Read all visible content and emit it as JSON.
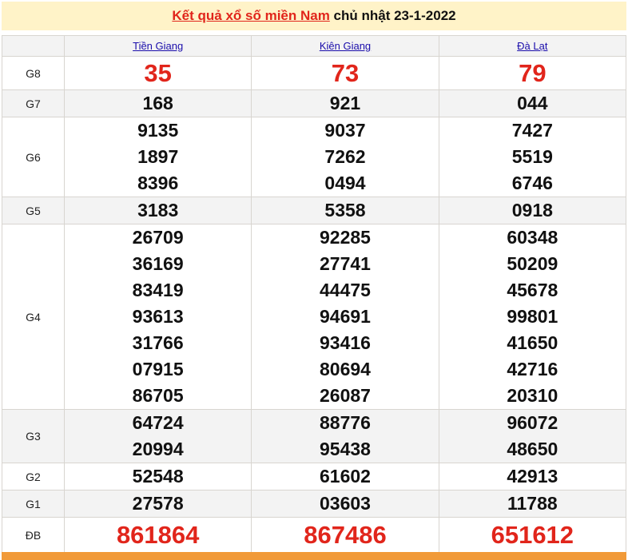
{
  "title": {
    "link": "Kết quả xổ số miền Nam",
    "rest": " chủ nhật 23-1-2022"
  },
  "provinces": [
    "Tiền Giang",
    "Kiên Giang",
    "Đà Lạt"
  ],
  "prizes": [
    {
      "label": "G8",
      "big": true,
      "values": [
        [
          "35"
        ],
        [
          "73"
        ],
        [
          "79"
        ]
      ]
    },
    {
      "label": "G7",
      "values": [
        [
          "168"
        ],
        [
          "921"
        ],
        [
          "044"
        ]
      ]
    },
    {
      "label": "G6",
      "values": [
        [
          "9135",
          "1897",
          "8396"
        ],
        [
          "9037",
          "7262",
          "0494"
        ],
        [
          "7427",
          "5519",
          "6746"
        ]
      ]
    },
    {
      "label": "G5",
      "values": [
        [
          "3183"
        ],
        [
          "5358"
        ],
        [
          "0918"
        ]
      ]
    },
    {
      "label": "G4",
      "values": [
        [
          "26709",
          "36169",
          "83419",
          "93613",
          "31766",
          "07915",
          "86705"
        ],
        [
          "92285",
          "27741",
          "44475",
          "94691",
          "93416",
          "80694",
          "26087"
        ],
        [
          "60348",
          "50209",
          "45678",
          "99801",
          "41650",
          "42716",
          "20310"
        ]
      ]
    },
    {
      "label": "G3",
      "values": [
        [
          "64724",
          "20994"
        ],
        [
          "88776",
          "95438"
        ],
        [
          "96072",
          "48650"
        ]
      ]
    },
    {
      "label": "G2",
      "values": [
        [
          "52548"
        ],
        [
          "61602"
        ],
        [
          "42913"
        ]
      ]
    },
    {
      "label": "G1",
      "values": [
        [
          "27578"
        ],
        [
          "03603"
        ],
        [
          "11788"
        ]
      ]
    },
    {
      "label": "ĐB",
      "big": true,
      "values": [
        [
          "861864"
        ],
        [
          "867486"
        ],
        [
          "651612"
        ]
      ]
    }
  ],
  "colors": {
    "accent": "#e1251b",
    "header_bg": "#fff3c8",
    "footer": "#f19a38"
  }
}
